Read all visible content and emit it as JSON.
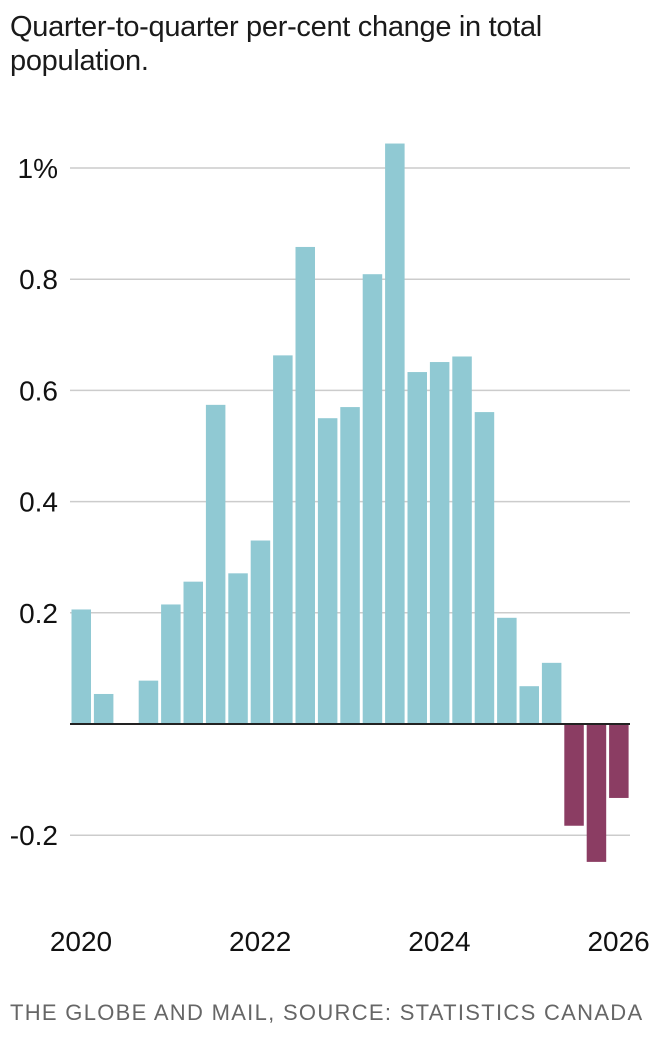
{
  "title": "Quarter-to-quarter per-cent change in total population.",
  "source": "THE GLOBE AND MAIL, SOURCE: STATISTICS CANADA",
  "colors": {
    "positive": "#90c9d3",
    "negative": "#8b3d63",
    "grid": "#cccccc",
    "axis": "#222222"
  },
  "chart_data": {
    "type": "bar",
    "ylim": [
      -0.29,
      1.09
    ],
    "grid": true,
    "y_ticks": [
      {
        "value": 1.0,
        "label": "1%"
      },
      {
        "value": 0.8,
        "label": "0.8"
      },
      {
        "value": 0.6,
        "label": "0.6"
      },
      {
        "value": 0.4,
        "label": "0.4"
      },
      {
        "value": 0.2,
        "label": "0.2"
      },
      {
        "value": -0.2,
        "label": "-0.2"
      }
    ],
    "x_ticks": [
      {
        "value": 2020,
        "label": "2020"
      },
      {
        "value": 2022,
        "label": "2022"
      },
      {
        "value": 2024,
        "label": "2024"
      },
      {
        "value": 2026,
        "label": "2026"
      }
    ],
    "x": [
      2020.0,
      2020.25,
      2020.5,
      2020.75,
      2021.0,
      2021.25,
      2021.5,
      2021.75,
      2022.0,
      2022.25,
      2022.5,
      2022.75,
      2023.0,
      2023.25,
      2023.5,
      2023.75,
      2024.0,
      2024.25,
      2024.5,
      2024.75,
      2025.0,
      2025.25,
      2025.5,
      2025.75,
      2026.0
    ],
    "values": [
      0.206,
      0.054,
      0.0,
      0.078,
      0.215,
      0.256,
      0.574,
      0.271,
      0.33,
      0.663,
      0.858,
      0.55,
      0.57,
      0.809,
      1.044,
      0.633,
      0.651,
      0.661,
      0.561,
      0.191,
      0.068,
      0.11,
      -0.183,
      -0.248,
      -0.133
    ]
  }
}
